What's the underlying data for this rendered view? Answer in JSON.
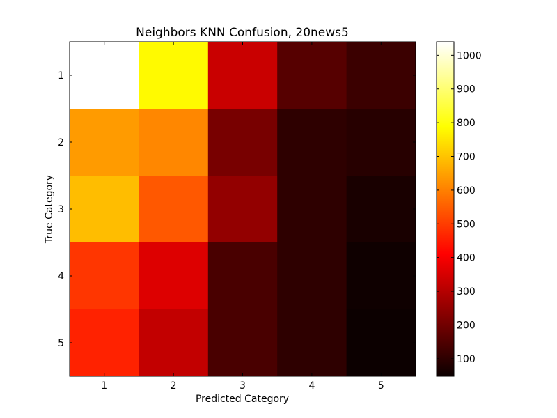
{
  "chart_data": {
    "type": "heatmap",
    "title": "Neighbors KNN Confusion, 20news5",
    "xlabel": "Predicted Category",
    "ylabel": "True Category",
    "x_categories": [
      "1",
      "2",
      "3",
      "4",
      "5"
    ],
    "y_categories": [
      "1",
      "2",
      "3",
      "4",
      "5"
    ],
    "values": [
      [
        1040,
        780,
        330,
        160,
        120
      ],
      [
        640,
        610,
        210,
        100,
        90
      ],
      [
        690,
        540,
        250,
        100,
        70
      ],
      [
        490,
        360,
        140,
        100,
        55
      ],
      [
        460,
        320,
        140,
        100,
        50
      ]
    ],
    "colormap": "hot",
    "colorbar": {
      "range": [
        48,
        1040
      ],
      "ticks": [
        "100",
        "200",
        "300",
        "400",
        "500",
        "600",
        "700",
        "800",
        "900",
        "1000"
      ],
      "tick_values": [
        100,
        200,
        300,
        400,
        500,
        600,
        700,
        800,
        900,
        1000
      ]
    },
    "grid": false,
    "legend": "colorbar-right"
  }
}
